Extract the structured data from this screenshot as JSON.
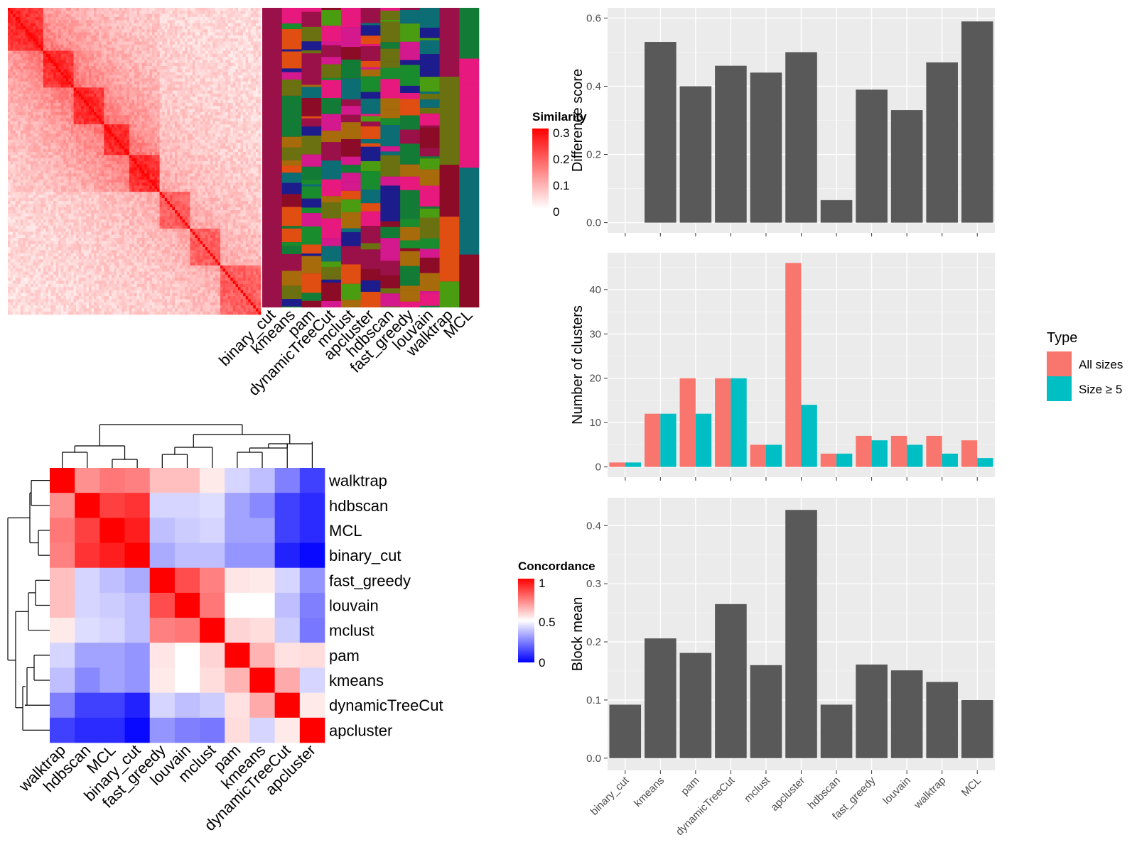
{
  "chart_data": [
    {
      "id": "similarity-heatmap",
      "type": "heatmap",
      "legend_title": "Similarity",
      "legend_ticks": [
        "0.3",
        "0.2",
        "0.1",
        "0"
      ],
      "n_cells": 100,
      "annotation_columns": [
        "binary_cut",
        "kmeans",
        "pam",
        "dynamicTreeCut",
        "mclust",
        "apcluster",
        "hdbscan",
        "fast_greedy",
        "louvain",
        "walktrap",
        "MCL"
      ],
      "colors": {
        "high": "#ff0000",
        "low": "#ffffff",
        "annotation_base": "#9a1049"
      }
    },
    {
      "id": "concordance-heatmap",
      "type": "heatmap",
      "legend_title": "Concordance",
      "legend_ticks": [
        "1",
        "0.5",
        "0"
      ],
      "rows": [
        "walktrap",
        "hdbscan",
        "MCL",
        "binary_cut",
        "fast_greedy",
        "louvain",
        "mclust",
        "pam",
        "kmeans",
        "dynamicTreeCut",
        "apcluster"
      ],
      "cols": [
        "walktrap",
        "hdbscan",
        "MCL",
        "binary_cut",
        "fast_greedy",
        "louvain",
        "mclust",
        "pam",
        "kmeans",
        "dynamicTreeCut",
        "apcluster"
      ],
      "values": [
        [
          1.0,
          0.66,
          0.72,
          0.7,
          0.55,
          0.55,
          0.45,
          0.3,
          0.25,
          0.1,
          -0.05
        ],
        [
          0.66,
          1.0,
          0.85,
          0.88,
          0.3,
          0.3,
          0.32,
          0.18,
          0.12,
          -0.05,
          -0.1
        ],
        [
          0.72,
          0.85,
          1.0,
          0.93,
          0.25,
          0.28,
          0.3,
          0.18,
          0.18,
          -0.05,
          -0.1
        ],
        [
          0.7,
          0.88,
          0.93,
          1.0,
          0.2,
          0.25,
          0.25,
          0.15,
          0.15,
          -0.12,
          -0.18
        ],
        [
          0.55,
          0.3,
          0.25,
          0.2,
          1.0,
          0.82,
          0.7,
          0.46,
          0.45,
          0.3,
          0.15
        ],
        [
          0.55,
          0.3,
          0.28,
          0.25,
          0.82,
          1.0,
          0.72,
          0.4,
          0.4,
          0.25,
          0.1
        ],
        [
          0.45,
          0.32,
          0.3,
          0.25,
          0.7,
          0.72,
          1.0,
          0.5,
          0.48,
          0.28,
          0.08
        ],
        [
          0.3,
          0.18,
          0.18,
          0.15,
          0.46,
          0.4,
          0.5,
          1.0,
          0.58,
          0.47,
          0.48
        ],
        [
          0.25,
          0.12,
          0.18,
          0.15,
          0.45,
          0.4,
          0.48,
          0.58,
          1.0,
          0.6,
          0.3
        ],
        [
          0.1,
          -0.05,
          -0.05,
          -0.12,
          0.3,
          0.25,
          0.28,
          0.47,
          0.6,
          1.0,
          0.45
        ],
        [
          -0.05,
          -0.1,
          -0.1,
          -0.18,
          0.15,
          0.1,
          0.08,
          0.48,
          0.3,
          0.45,
          1.0
        ]
      ],
      "colors": {
        "high": "#ff0000",
        "mid": "#ffffff",
        "low": "#0000ff"
      }
    },
    {
      "id": "difference-score",
      "type": "bar",
      "categories": [
        "binary_cut",
        "kmeans",
        "pam",
        "dynamicTreeCut",
        "mclust",
        "apcluster",
        "hdbscan",
        "fast_greedy",
        "louvain",
        "walktrap",
        "MCL"
      ],
      "values": [
        0.0,
        0.53,
        0.4,
        0.46,
        0.44,
        0.5,
        0.066,
        0.39,
        0.33,
        0.47,
        0.59
      ],
      "ylabel": "Difference score",
      "ylim": [
        -0.03,
        0.63
      ],
      "yticks": [
        0.0,
        0.2,
        0.4,
        0.6
      ],
      "ytick_labels": [
        "0.0",
        "0.2",
        "0.4",
        "0.6"
      ]
    },
    {
      "id": "number-of-clusters",
      "type": "bar",
      "categories": [
        "binary_cut",
        "kmeans",
        "pam",
        "dynamicTreeCut",
        "mclust",
        "apcluster",
        "hdbscan",
        "fast_greedy",
        "louvain",
        "walktrap",
        "MCL"
      ],
      "series": [
        {
          "name": "All sizes",
          "values": [
            1,
            12,
            20,
            20,
            5,
            46,
            3,
            7,
            7,
            7,
            6
          ],
          "color": "#f8766d"
        },
        {
          "name": "Size ≥ 5",
          "values": [
            1,
            12,
            12,
            20,
            5,
            14,
            3,
            6,
            5,
            3,
            2
          ],
          "color": "#00bfc4"
        }
      ],
      "ylabel": "Number of clusters",
      "legend_title": "Type",
      "legend_position": "right",
      "ylim": [
        -2.3,
        48.3
      ],
      "yticks": [
        0,
        10,
        20,
        30,
        40
      ],
      "ytick_labels": [
        "0",
        "10",
        "20",
        "30",
        "40"
      ]
    },
    {
      "id": "block-mean",
      "type": "bar",
      "categories": [
        "binary_cut",
        "kmeans",
        "pam",
        "dynamicTreeCut",
        "mclust",
        "apcluster",
        "hdbscan",
        "fast_greedy",
        "louvain",
        "walktrap",
        "MCL"
      ],
      "values": [
        0.092,
        0.206,
        0.181,
        0.265,
        0.16,
        0.427,
        0.092,
        0.161,
        0.151,
        0.131,
        0.1
      ],
      "ylabel": "Block mean",
      "ylim": [
        -0.021,
        0.448
      ],
      "yticks": [
        0.0,
        0.1,
        0.2,
        0.3,
        0.4
      ],
      "ytick_labels": [
        "0.0",
        "0.1",
        "0.2",
        "0.3",
        "0.4"
      ]
    }
  ]
}
